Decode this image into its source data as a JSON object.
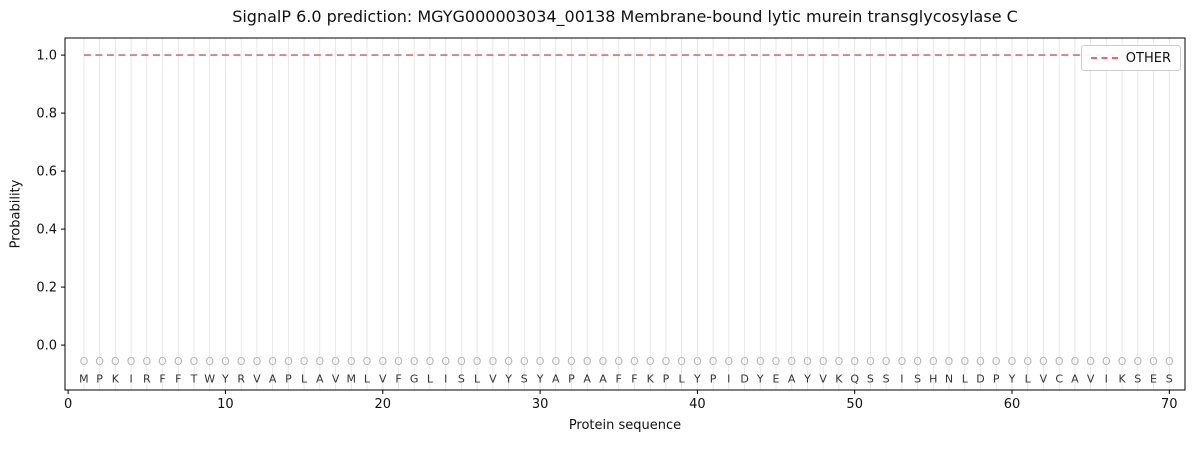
{
  "chart_data": {
    "type": "line",
    "title": "SignalP 6.0 prediction: MGYG000003034_00138 Membrane-bound lytic murein transglycosylase C",
    "xlabel": "Protein sequence",
    "ylabel": "Probability",
    "xlim": [
      -0.2,
      71
    ],
    "ylim": [
      -0.155,
      1.059
    ],
    "xticks": [
      0,
      10,
      20,
      30,
      40,
      50,
      60,
      70
    ],
    "yticks": [
      0.0,
      0.2,
      0.4,
      0.6,
      0.8,
      1.0
    ],
    "grid": "faint vertical gridline at every residue position 1-70",
    "legend": {
      "position": "upper right",
      "entries": [
        {
          "label": "OTHER",
          "color": "#ee6666",
          "linestyle": "dashed"
        }
      ]
    },
    "series": [
      {
        "name": "OTHER",
        "type": "line",
        "linestyle": "dashed",
        "color": "#ee6666",
        "x_start": 1,
        "x_end": 70,
        "constant_y": 1.0
      }
    ],
    "sequence": "MPKIRFFTWYRVAPLAVMLVFGLISLVYSYAPAAFFKPLYPIDYEAYVKQSSISHNLDPYLVCAVIKSES",
    "per_position_labels": "OOOOOOOOOOOOOOOOOOOOOOOOOOOOOOOOOOOOOOOOOOOOOOOOOOOOOOOOOOOOOOOOOOOOOO",
    "marker_row_y": -0.055,
    "sequence_row_y": -0.115
  },
  "colors": {
    "other_line": "#ee6666",
    "grid": "#e2e2e2",
    "marker": "#b5b5b5",
    "sequence_letter": "#333333",
    "axis": "#000000",
    "legend_border": "#cccccc"
  }
}
